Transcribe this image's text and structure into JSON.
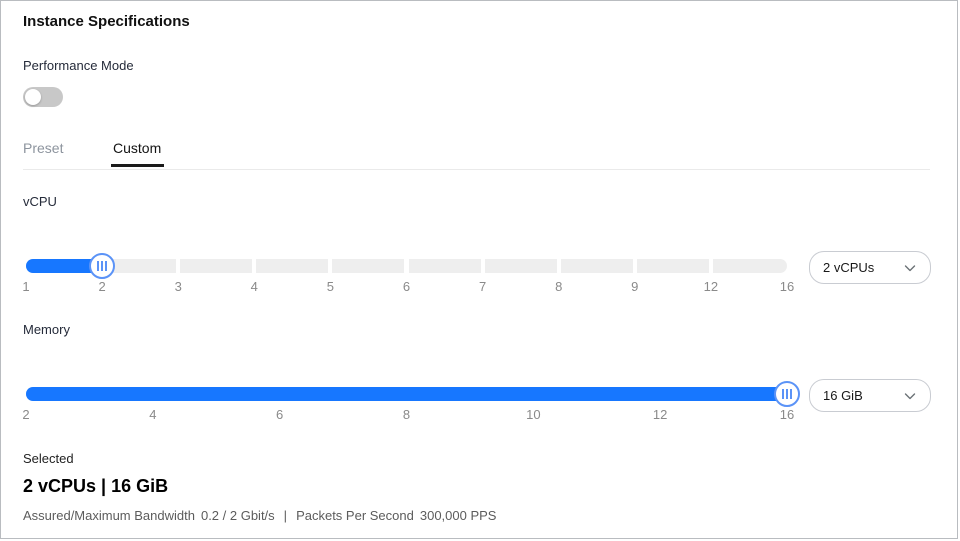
{
  "panel": {
    "title": "Instance Specifications"
  },
  "performance_mode": {
    "label": "Performance Mode",
    "state": "off"
  },
  "tabs": [
    {
      "label": "Preset",
      "active": false
    },
    {
      "label": "Custom",
      "active": true
    }
  ],
  "sliders": {
    "vcpu": {
      "label": "vCPU",
      "ticks": [
        "1",
        "2",
        "3",
        "4",
        "5",
        "6",
        "7",
        "8",
        "9",
        "12",
        "16"
      ],
      "handle_index": 1,
      "value": "2",
      "segmented_track": true,
      "dropdown_value": "2 vCPUs"
    },
    "memory": {
      "label": "Memory",
      "ticks": [
        "2",
        "4",
        "6",
        "8",
        "10",
        "12",
        "16"
      ],
      "handle_index": 6,
      "value": "16",
      "segmented_track": false,
      "dropdown_value": "16 GiB"
    }
  },
  "selected": {
    "label": "Selected",
    "summary": "2 vCPUs | 16 GiB",
    "bandwidth_label": "Assured/Maximum Bandwidth",
    "bandwidth_value": "0.2 / 2 Gbit/s",
    "separator": "|",
    "pps_label": "Packets Per Second",
    "pps_value": "300,000 PPS"
  },
  "colors": {
    "accent_blue": "#1777ff",
    "handle_border_blue": "#5b93f7",
    "track_gray": "#eeeeee",
    "toggle_off_gray": "#c8c8c8"
  }
}
